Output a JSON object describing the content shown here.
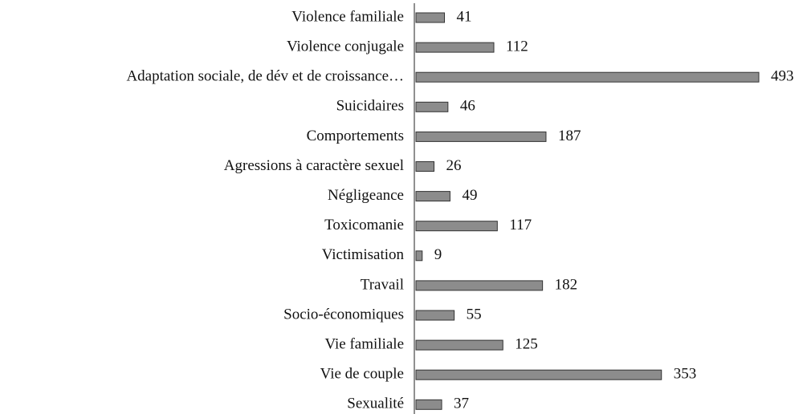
{
  "chart_data": {
    "type": "bar",
    "orientation": "horizontal",
    "categories": [
      "Violence familiale",
      "Violence conjugale",
      "Adaptation sociale, de dév et de croissance…",
      "Suicidaires",
      "Comportements",
      "Agressions à caractère sexuel",
      "Négligeance",
      "Toxicomanie",
      "Victimisation",
      "Travail",
      "Socio-économiques",
      "Vie familiale",
      "Vie de couple",
      "Sexualité"
    ],
    "values": [
      41,
      112,
      493,
      46,
      187,
      26,
      49,
      117,
      9,
      182,
      55,
      125,
      353,
      37
    ],
    "color": "#8c8c8c"
  }
}
